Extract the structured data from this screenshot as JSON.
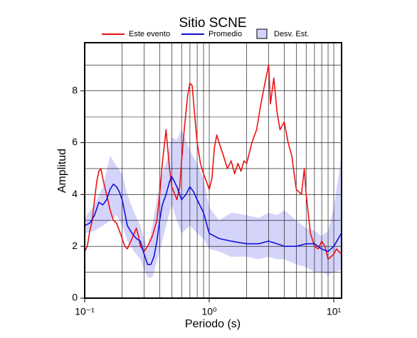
{
  "chart_data": {
    "type": "line",
    "title": "Sitio SCNE",
    "x_label": "Periodo (s)",
    "y_label": "Amplitud",
    "xscale": "log",
    "xlim": [
      0.1,
      11.55
    ],
    "ylim": [
      0,
      9.86
    ],
    "xticks": [
      {
        "value": 0.1,
        "label": "10⁻¹"
      },
      {
        "value": 1,
        "label": "10⁰"
      },
      {
        "value": 10,
        "label": "10¹"
      }
    ],
    "xminor": [
      0.2,
      0.3,
      0.4,
      0.5,
      0.6,
      0.7,
      0.8,
      0.9,
      2,
      3,
      4,
      5,
      6,
      7,
      8,
      9
    ],
    "yticks": [
      0,
      2,
      4,
      6,
      8
    ],
    "yminor": [
      1,
      3,
      5,
      7,
      9
    ],
    "grid": true,
    "series": [
      {
        "name": "Este evento",
        "kind": "line",
        "color": "#ee1111",
        "x": [
          0.1,
          0.105,
          0.11,
          0.115,
          0.12,
          0.125,
          0.13,
          0.135,
          0.14,
          0.15,
          0.16,
          0.17,
          0.18,
          0.19,
          0.2,
          0.21,
          0.22,
          0.24,
          0.26,
          0.27,
          0.28,
          0.3,
          0.32,
          0.35,
          0.38,
          0.4,
          0.42,
          0.45,
          0.48,
          0.5,
          0.53,
          0.55,
          0.58,
          0.6,
          0.63,
          0.67,
          0.7,
          0.73,
          0.76,
          0.8,
          0.85,
          0.9,
          0.95,
          1.0,
          1.05,
          1.1,
          1.15,
          1.2,
          1.3,
          1.4,
          1.5,
          1.6,
          1.7,
          1.8,
          1.9,
          2.0,
          2.2,
          2.4,
          2.6,
          2.8,
          3.0,
          3.1,
          3.3,
          3.5,
          3.7,
          4.0,
          4.3,
          4.6,
          5.0,
          5.5,
          5.8,
          6.0,
          6.5,
          7.0,
          7.5,
          8,
          8.5,
          9,
          10,
          10.5,
          11,
          11.5
        ],
        "values": [
          1.8,
          2.0,
          2.6,
          3.0,
          3.8,
          4.5,
          4.9,
          5.0,
          4.6,
          4.0,
          3.4,
          3.0,
          2.9,
          2.6,
          2.3,
          2.0,
          1.9,
          2.3,
          2.7,
          2.4,
          2.0,
          1.8,
          2.0,
          2.4,
          3.0,
          4.0,
          5.2,
          6.5,
          5.0,
          4.3,
          4.0,
          3.8,
          4.3,
          5.3,
          6.5,
          7.8,
          8.3,
          8.2,
          7.2,
          6.0,
          5.2,
          4.8,
          4.5,
          4.2,
          4.6,
          5.8,
          6.3,
          6.0,
          5.5,
          5.0,
          5.3,
          4.8,
          5.2,
          4.9,
          5.3,
          5.2,
          6.0,
          6.5,
          7.5,
          8.3,
          9.0,
          7.5,
          8.5,
          7.2,
          6.5,
          6.8,
          6.0,
          5.5,
          4.2,
          4.0,
          5.0,
          4.0,
          2.5,
          2.0,
          1.9,
          2.2,
          2.0,
          1.5,
          1.7,
          1.9,
          1.8,
          1.7
        ]
      },
      {
        "name": "Promedio",
        "kind": "line",
        "color": "#1111dd",
        "x": [
          0.1,
          0.11,
          0.12,
          0.13,
          0.14,
          0.15,
          0.16,
          0.17,
          0.18,
          0.19,
          0.2,
          0.21,
          0.22,
          0.24,
          0.26,
          0.28,
          0.3,
          0.32,
          0.34,
          0.36,
          0.38,
          0.4,
          0.42,
          0.45,
          0.48,
          0.5,
          0.55,
          0.6,
          0.65,
          0.7,
          0.75,
          0.8,
          0.9,
          1.0,
          1.2,
          1.5,
          2,
          2.5,
          3,
          3.5,
          4,
          5,
          6,
          7,
          8,
          9,
          10,
          11.5
        ],
        "values": [
          2.8,
          2.9,
          3.2,
          3.7,
          3.6,
          3.8,
          4.2,
          4.4,
          4.3,
          4.1,
          3.8,
          3.3,
          2.8,
          2.5,
          2.3,
          2.2,
          1.7,
          1.3,
          1.3,
          1.6,
          2.2,
          3.0,
          3.6,
          4.0,
          4.5,
          4.7,
          4.3,
          3.8,
          4.0,
          4.3,
          4.1,
          3.8,
          3.3,
          2.5,
          2.3,
          2.2,
          2.1,
          2.1,
          2.2,
          2.1,
          2.0,
          2.0,
          2.1,
          2.1,
          1.9,
          1.8,
          2.0,
          2.5
        ]
      },
      {
        "name": "Desv. Est.",
        "kind": "band",
        "color": "#d4d4fb",
        "x": [
          0.1,
          0.12,
          0.14,
          0.16,
          0.18,
          0.2,
          0.22,
          0.25,
          0.28,
          0.3,
          0.32,
          0.35,
          0.4,
          0.45,
          0.5,
          0.55,
          0.6,
          0.7,
          0.8,
          0.9,
          1.0,
          1.2,
          1.5,
          2,
          2.5,
          3,
          3.5,
          4,
          5,
          6,
          7,
          8,
          9,
          10,
          11.5
        ],
        "upper": [
          3.1,
          3.6,
          4.3,
          5.5,
          5.1,
          4.8,
          4.0,
          3.3,
          2.8,
          2.3,
          1.9,
          2.8,
          4.5,
          5.2,
          6.2,
          6.1,
          6.5,
          5.7,
          5.2,
          4.6,
          3.5,
          3.0,
          3.3,
          3.2,
          3.1,
          3.3,
          3.2,
          3.4,
          3.0,
          2.7,
          2.6,
          2.4,
          2.6,
          3.5,
          5.5
        ],
        "lower": [
          2.5,
          2.6,
          2.8,
          3.0,
          3.2,
          2.8,
          2.2,
          1.8,
          1.5,
          1.1,
          0.8,
          0.8,
          1.8,
          2.8,
          3.6,
          3.0,
          2.5,
          2.8,
          2.5,
          2.3,
          1.9,
          1.8,
          1.6,
          1.6,
          1.5,
          1.6,
          1.5,
          1.5,
          1.3,
          1.2,
          1.0,
          1.0,
          0.9,
          1.0,
          1.1
        ]
      }
    ]
  }
}
